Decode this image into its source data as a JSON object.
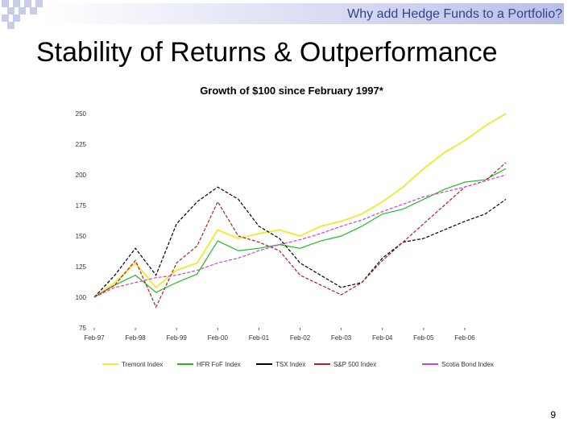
{
  "header": {
    "subtitle": "Why add Hedge Funds to a Portfolio?"
  },
  "slide": {
    "title": "Stability of Returns & Outperformance",
    "page_number": "9"
  },
  "colors": {
    "tremont": "#ecec3c",
    "hfr": "#22bb22",
    "tsx": "#000000",
    "sp500": "#aa2222",
    "scotia": "#cc44cc"
  },
  "chart_data": {
    "type": "line",
    "title": "Growth of $100 since February 1997*",
    "xlabel": "",
    "ylabel": "",
    "ylim": [
      75,
      250
    ],
    "yticks": [
      75,
      100,
      125,
      150,
      175,
      200,
      225,
      250
    ],
    "xlim": [
      0,
      10
    ],
    "xticks": [
      "Feb-97",
      "Feb-98",
      "Feb-99",
      "Feb-00",
      "Feb-01",
      "Feb-02",
      "Feb-03",
      "Feb-04",
      "Feb-05",
      "Feb-06"
    ],
    "x": [
      0,
      0.5,
      1,
      1.5,
      2,
      2.5,
      3,
      3.5,
      4,
      4.5,
      5,
      5.5,
      6,
      6.5,
      7,
      7.5,
      8,
      8.5,
      9,
      9.5,
      10
    ],
    "series": [
      {
        "name": "Tremont Index",
        "color": "#ecec3c",
        "values": [
          100,
          112,
          128,
          108,
          122,
          128,
          155,
          148,
          152,
          155,
          150,
          158,
          162,
          168,
          178,
          190,
          205,
          218,
          228,
          240,
          250
        ]
      },
      {
        "name": "HFR FoF Index",
        "color": "#22bb22",
        "values": [
          100,
          110,
          118,
          104,
          112,
          119,
          146,
          138,
          140,
          143,
          140,
          146,
          150,
          158,
          168,
          172,
          180,
          188,
          194,
          196,
          205
        ]
      },
      {
        "name": "TSX Index",
        "color": "#000000",
        "values": [
          100,
          118,
          140,
          118,
          160,
          178,
          190,
          180,
          158,
          148,
          128,
          118,
          108,
          112,
          132,
          145,
          148,
          155,
          162,
          168,
          180
        ]
      },
      {
        "name": "S&P 500 Index",
        "color": "#aa2222",
        "values": [
          100,
          110,
          130,
          92,
          128,
          142,
          178,
          150,
          145,
          138,
          118,
          110,
          102,
          112,
          130,
          145,
          160,
          175,
          190,
          195,
          210
        ]
      },
      {
        "name": "Scotia Bond Index",
        "color": "#cc44cc",
        "values": [
          100,
          108,
          112,
          116,
          118,
          122,
          128,
          132,
          138,
          143,
          147,
          152,
          158,
          163,
          170,
          176,
          182,
          186,
          190,
          195,
          200
        ]
      }
    ],
    "legend": "bottom"
  }
}
